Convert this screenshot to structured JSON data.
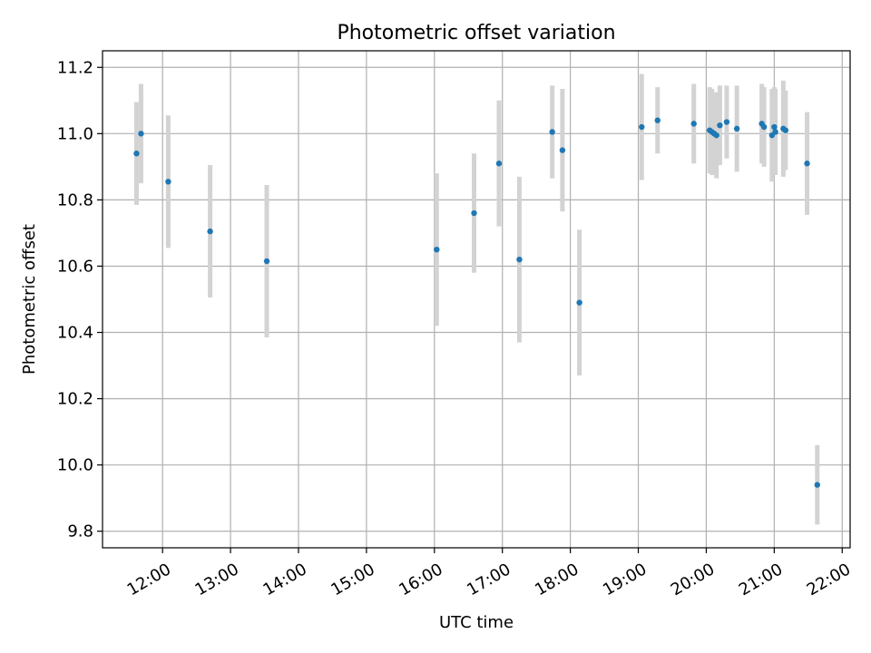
{
  "chart_data": {
    "type": "scatter",
    "title": "Photometric offset variation",
    "xlabel": "UTC time",
    "ylabel": "Photometric offset",
    "grid": true,
    "legend": "none",
    "xlim": [
      "11:07",
      "22:07"
    ],
    "ylim": [
      9.75,
      11.25
    ],
    "x_ticks": [
      "12:00",
      "13:00",
      "14:00",
      "15:00",
      "16:00",
      "17:00",
      "18:00",
      "19:00",
      "20:00",
      "21:00",
      "22:00"
    ],
    "y_ticks": [
      "9.8",
      "10.0",
      "10.2",
      "10.4",
      "10.6",
      "10.8",
      "11.0",
      "11.2"
    ],
    "colors": {
      "marker": "#1f77b4",
      "errorbar": "#d3d3d3",
      "grid": "#b0b0b0"
    },
    "series": [
      {
        "points": [
          {
            "x": "11:37",
            "y": 10.94,
            "err": 0.155
          },
          {
            "x": "11:41",
            "y": 11.0,
            "err": 0.15
          },
          {
            "x": "12:05",
            "y": 10.855,
            "err": 0.2
          },
          {
            "x": "12:42",
            "y": 10.705,
            "err": 0.2
          },
          {
            "x": "13:32",
            "y": 10.615,
            "err": 0.23
          },
          {
            "x": "16:02",
            "y": 10.65,
            "err": 0.23
          },
          {
            "x": "16:35",
            "y": 10.76,
            "err": 0.18
          },
          {
            "x": "16:57",
            "y": 10.91,
            "err": 0.19
          },
          {
            "x": "17:15",
            "y": 10.62,
            "err": 0.25
          },
          {
            "x": "17:44",
            "y": 11.005,
            "err": 0.14
          },
          {
            "x": "17:53",
            "y": 10.95,
            "err": 0.185
          },
          {
            "x": "18:08",
            "y": 10.49,
            "err": 0.22
          },
          {
            "x": "19:03",
            "y": 11.02,
            "err": 0.16
          },
          {
            "x": "19:17",
            "y": 11.04,
            "err": 0.1
          },
          {
            "x": "19:49",
            "y": 11.03,
            "err": 0.12
          },
          {
            "x": "20:03",
            "y": 11.01,
            "err": 0.13
          },
          {
            "x": "20:05",
            "y": 11.005,
            "err": 0.13
          },
          {
            "x": "20:07",
            "y": 11.0,
            "err": 0.12
          },
          {
            "x": "20:09",
            "y": 10.995,
            "err": 0.13
          },
          {
            "x": "20:12",
            "y": 11.025,
            "err": 0.12
          },
          {
            "x": "20:18",
            "y": 11.035,
            "err": 0.11
          },
          {
            "x": "20:27",
            "y": 11.015,
            "err": 0.13
          },
          {
            "x": "20:49",
            "y": 11.03,
            "err": 0.12
          },
          {
            "x": "20:51",
            "y": 11.02,
            "err": 0.12
          },
          {
            "x": "20:58",
            "y": 10.995,
            "err": 0.14
          },
          {
            "x": "21:00",
            "y": 11.02,
            "err": 0.12
          },
          {
            "x": "21:01",
            "y": 11.005,
            "err": 0.13
          },
          {
            "x": "21:08",
            "y": 11.015,
            "err": 0.145
          },
          {
            "x": "21:10",
            "y": 11.01,
            "err": 0.12
          },
          {
            "x": "21:29",
            "y": 10.91,
            "err": 0.155
          },
          {
            "x": "21:38",
            "y": 9.94,
            "err": 0.12
          }
        ]
      }
    ]
  }
}
